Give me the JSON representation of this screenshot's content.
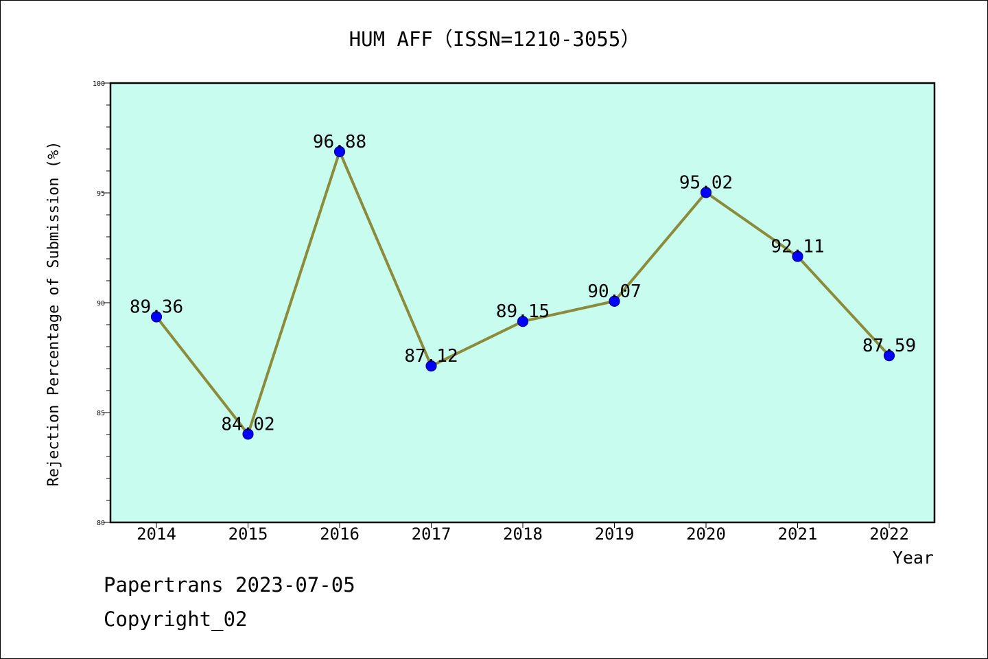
{
  "chart_data": {
    "type": "line",
    "title": "HUM AFF（ISSN=1210-3055）",
    "xlabel": "Year",
    "ylabel": "Rejection Percentage of Submission (%)",
    "categories": [
      "2014",
      "2015",
      "2016",
      "2017",
      "2018",
      "2019",
      "2020",
      "2021",
      "2022"
    ],
    "series": [
      {
        "values": [
          89.36,
          84.02,
          96.88,
          87.12,
          89.15,
          90.07,
          95.02,
          92.11,
          87.59
        ],
        "labels": [
          "89.36",
          "84.02",
          "96.88",
          "87.12",
          "89.15",
          "90.07",
          "95.02",
          "92.11",
          "87.59"
        ]
      }
    ],
    "ylim": [
      80,
      100
    ],
    "yticks": [
      "80",
      "85",
      "90",
      "95",
      "100"
    ],
    "ytick_values": [
      80,
      85,
      90,
      95,
      100
    ],
    "grid": false,
    "colors": {
      "plot_background": "#c8fcee",
      "line": "#8b8b3a",
      "marker": "#0000ff",
      "marker_edge": "#00008b"
    }
  },
  "footer": {
    "watermark": "Papertrans 2023-07-05",
    "copyright": "Copyright_02"
  }
}
